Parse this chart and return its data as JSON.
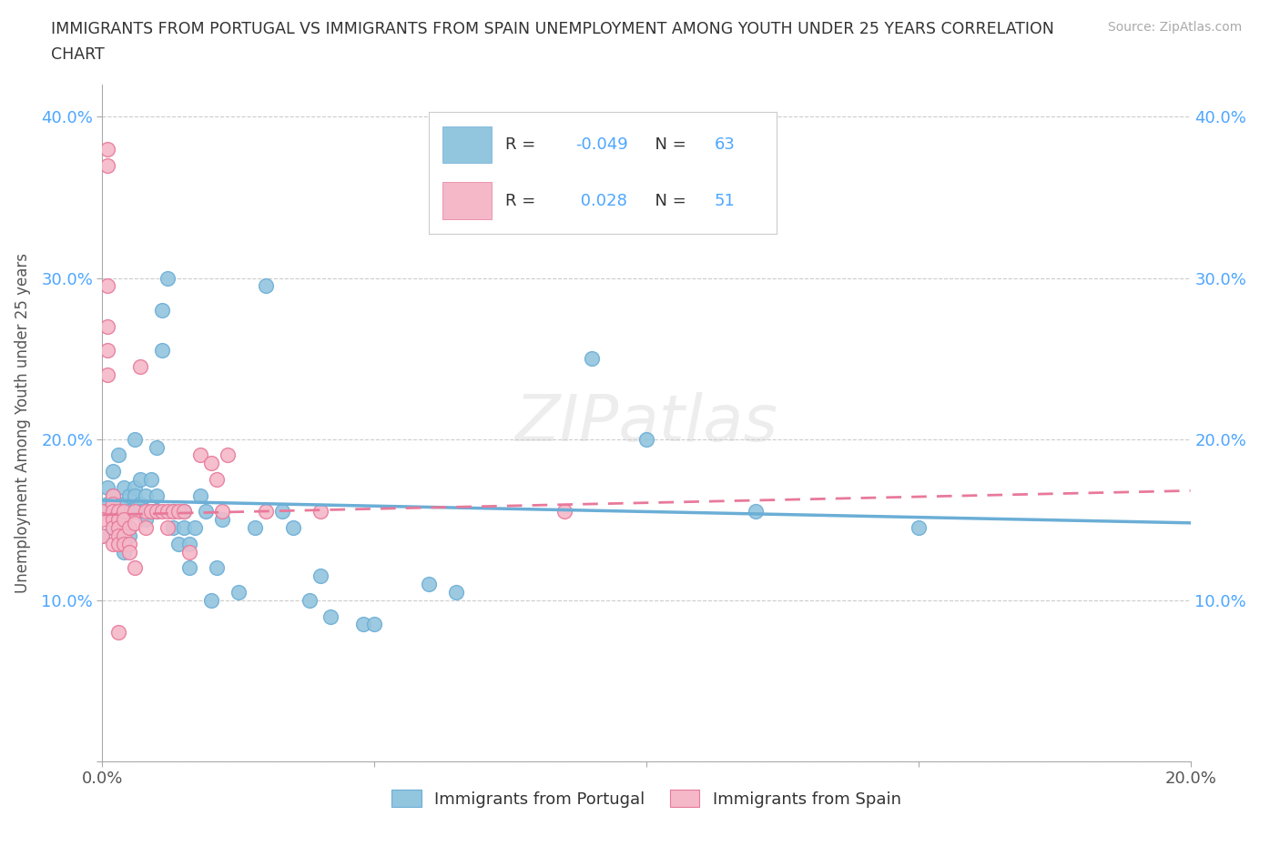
{
  "title_line1": "IMMIGRANTS FROM PORTUGAL VS IMMIGRANTS FROM SPAIN UNEMPLOYMENT AMONG YOUTH UNDER 25 YEARS CORRELATION",
  "title_line2": "CHART",
  "source": "Source: ZipAtlas.com",
  "ylabel": "Unemployment Among Youth under 25 years",
  "xlim": [
    0.0,
    0.2
  ],
  "ylim": [
    0.0,
    0.42
  ],
  "color_portugal": "#92c5de",
  "color_spain": "#f4b8c8",
  "color_portugal_edge": "#6baed6",
  "color_spain_edge": "#e8799a",
  "legend_R_portugal": "-0.049",
  "legend_N_portugal": "63",
  "legend_R_spain": "0.028",
  "legend_N_spain": "51",
  "watermark": "ZIPatlas",
  "portugal_scatter": [
    [
      0.0,
      0.155
    ],
    [
      0.0,
      0.14
    ],
    [
      0.001,
      0.17
    ],
    [
      0.001,
      0.16
    ],
    [
      0.001,
      0.155
    ],
    [
      0.002,
      0.18
    ],
    [
      0.002,
      0.165
    ],
    [
      0.002,
      0.145
    ],
    [
      0.003,
      0.19
    ],
    [
      0.003,
      0.155
    ],
    [
      0.003,
      0.15
    ],
    [
      0.004,
      0.17
    ],
    [
      0.004,
      0.16
    ],
    [
      0.004,
      0.14
    ],
    [
      0.004,
      0.13
    ],
    [
      0.005,
      0.165
    ],
    [
      0.005,
      0.155
    ],
    [
      0.005,
      0.14
    ],
    [
      0.006,
      0.2
    ],
    [
      0.006,
      0.17
    ],
    [
      0.006,
      0.165
    ],
    [
      0.007,
      0.175
    ],
    [
      0.007,
      0.16
    ],
    [
      0.007,
      0.155
    ],
    [
      0.008,
      0.165
    ],
    [
      0.008,
      0.15
    ],
    [
      0.009,
      0.175
    ],
    [
      0.009,
      0.155
    ],
    [
      0.01,
      0.195
    ],
    [
      0.01,
      0.165
    ],
    [
      0.01,
      0.155
    ],
    [
      0.011,
      0.28
    ],
    [
      0.011,
      0.255
    ],
    [
      0.012,
      0.3
    ],
    [
      0.013,
      0.155
    ],
    [
      0.013,
      0.145
    ],
    [
      0.014,
      0.135
    ],
    [
      0.015,
      0.155
    ],
    [
      0.015,
      0.145
    ],
    [
      0.016,
      0.135
    ],
    [
      0.016,
      0.12
    ],
    [
      0.017,
      0.145
    ],
    [
      0.018,
      0.165
    ],
    [
      0.019,
      0.155
    ],
    [
      0.02,
      0.1
    ],
    [
      0.021,
      0.12
    ],
    [
      0.022,
      0.15
    ],
    [
      0.025,
      0.105
    ],
    [
      0.028,
      0.145
    ],
    [
      0.03,
      0.295
    ],
    [
      0.033,
      0.155
    ],
    [
      0.035,
      0.145
    ],
    [
      0.038,
      0.1
    ],
    [
      0.04,
      0.115
    ],
    [
      0.042,
      0.09
    ],
    [
      0.048,
      0.085
    ],
    [
      0.05,
      0.085
    ],
    [
      0.06,
      0.11
    ],
    [
      0.065,
      0.105
    ],
    [
      0.09,
      0.25
    ],
    [
      0.1,
      0.2
    ],
    [
      0.12,
      0.155
    ],
    [
      0.15,
      0.145
    ]
  ],
  "spain_scatter": [
    [
      0.0,
      0.155
    ],
    [
      0.0,
      0.15
    ],
    [
      0.0,
      0.14
    ],
    [
      0.001,
      0.38
    ],
    [
      0.001,
      0.37
    ],
    [
      0.001,
      0.295
    ],
    [
      0.001,
      0.27
    ],
    [
      0.001,
      0.255
    ],
    [
      0.001,
      0.24
    ],
    [
      0.002,
      0.165
    ],
    [
      0.002,
      0.16
    ],
    [
      0.002,
      0.155
    ],
    [
      0.002,
      0.15
    ],
    [
      0.002,
      0.145
    ],
    [
      0.002,
      0.135
    ],
    [
      0.003,
      0.155
    ],
    [
      0.003,
      0.15
    ],
    [
      0.003,
      0.145
    ],
    [
      0.003,
      0.14
    ],
    [
      0.003,
      0.135
    ],
    [
      0.003,
      0.08
    ],
    [
      0.004,
      0.155
    ],
    [
      0.004,
      0.15
    ],
    [
      0.004,
      0.14
    ],
    [
      0.004,
      0.135
    ],
    [
      0.005,
      0.145
    ],
    [
      0.005,
      0.135
    ],
    [
      0.005,
      0.13
    ],
    [
      0.006,
      0.155
    ],
    [
      0.006,
      0.148
    ],
    [
      0.006,
      0.12
    ],
    [
      0.007,
      0.245
    ],
    [
      0.008,
      0.155
    ],
    [
      0.008,
      0.145
    ],
    [
      0.009,
      0.155
    ],
    [
      0.01,
      0.155
    ],
    [
      0.011,
      0.155
    ],
    [
      0.012,
      0.155
    ],
    [
      0.012,
      0.145
    ],
    [
      0.013,
      0.155
    ],
    [
      0.014,
      0.155
    ],
    [
      0.015,
      0.155
    ],
    [
      0.016,
      0.13
    ],
    [
      0.018,
      0.19
    ],
    [
      0.02,
      0.185
    ],
    [
      0.021,
      0.175
    ],
    [
      0.022,
      0.155
    ],
    [
      0.023,
      0.19
    ],
    [
      0.03,
      0.155
    ],
    [
      0.04,
      0.155
    ],
    [
      0.085,
      0.155
    ]
  ],
  "trendline_portugal": {
    "x": [
      0.0,
      0.2
    ],
    "y": [
      0.162,
      0.148
    ]
  },
  "trendline_spain": {
    "x": [
      0.0,
      0.2
    ],
    "y": [
      0.153,
      0.168
    ]
  }
}
